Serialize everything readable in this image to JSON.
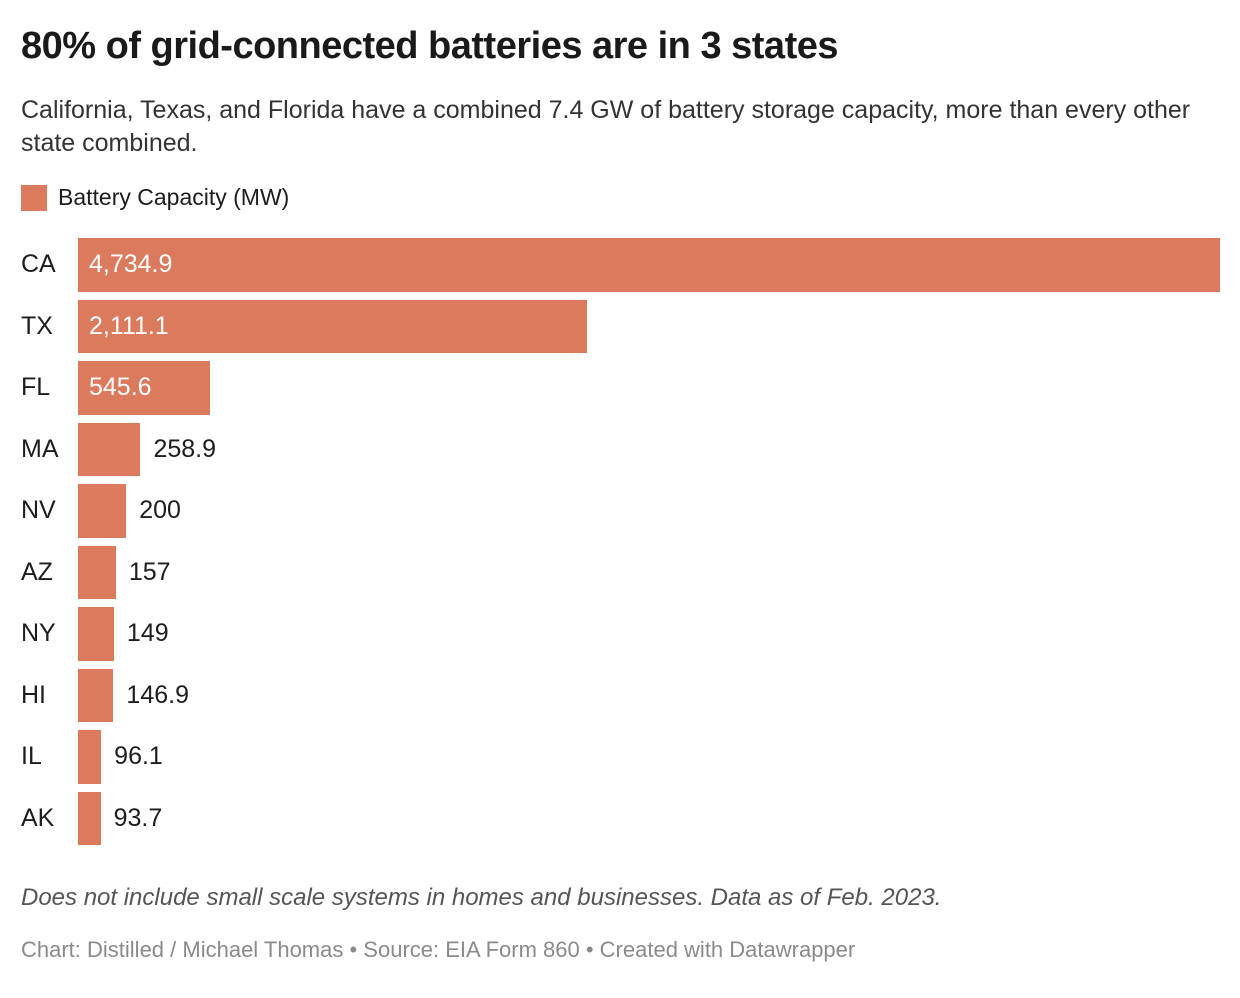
{
  "header": {
    "title": "80% of grid-connected batteries are in 3 states",
    "subtitle": "California, Texas, and Florida have a combined 7.4 GW of battery storage capacity, more than every other state combined."
  },
  "legend": {
    "label": "Battery Capacity (MW)",
    "swatch_color": "#DC7A5E"
  },
  "chart_data": {
    "type": "bar",
    "orientation": "horizontal",
    "title": "80% of grid-connected batteries are in 3 states",
    "series_name": "Battery Capacity (MW)",
    "categories": [
      "CA",
      "TX",
      "FL",
      "MA",
      "NV",
      "AZ",
      "NY",
      "HI",
      "IL",
      "AK"
    ],
    "values": [
      4734.9,
      2111.1,
      545.6,
      258.9,
      200,
      157,
      149,
      146.9,
      96.1,
      93.7
    ],
    "value_labels": [
      "4,734.9",
      "2,111.1",
      "545.6",
      "258.9",
      "200",
      "157",
      "149",
      "146.9",
      "96.1",
      "93.7"
    ],
    "xlabel": "",
    "ylabel": "",
    "xlim": [
      0,
      4734.9
    ],
    "grid": false,
    "legend_position": "top-left",
    "bar_color": "#DC7A5E",
    "inside_label_color": "#ffffff",
    "outside_label_color": "#1d1d1d",
    "inside_label_threshold": 500
  },
  "footer": {
    "note": "Does not include small scale systems in homes and businesses. Data as of Feb. 2023.",
    "attribution": "Chart: Distilled / Michael Thomas • Source: EIA Form 860 • Created with Datawrapper"
  }
}
